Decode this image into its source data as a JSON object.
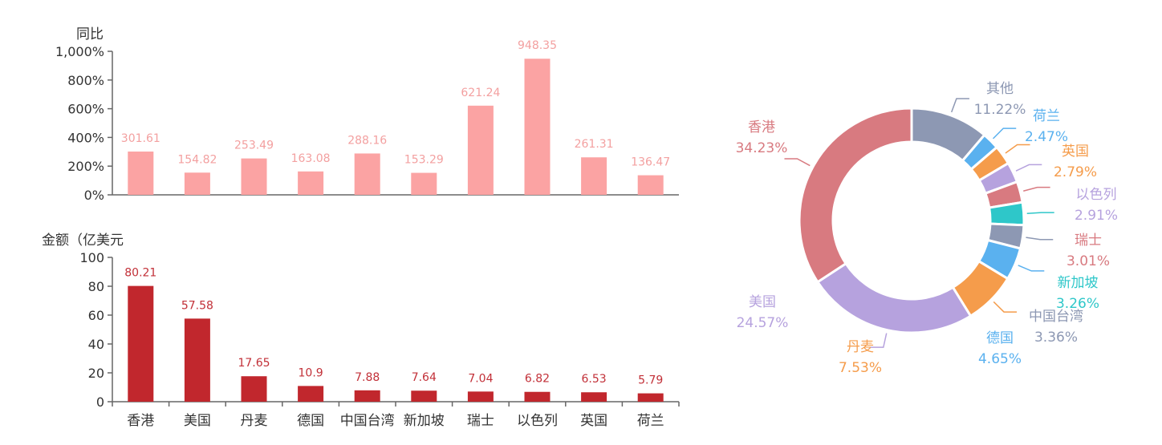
{
  "chart_data": [
    {
      "type": "bar",
      "ylabel": "同比",
      "categories": [
        "香港",
        "美国",
        "丹麦",
        "德国",
        "中国台湾",
        "新加坡",
        "瑞士",
        "以色列",
        "英国",
        "荷兰"
      ],
      "values": [
        301.61,
        154.82,
        253.49,
        163.08,
        288.16,
        153.29,
        621.24,
        948.35,
        261.31,
        136.47
      ],
      "value_labels": [
        "301.61",
        "154.82",
        "253.49",
        "163.08",
        "288.16",
        "153.29",
        "621.24",
        "948.35",
        "261.31",
        "136.47"
      ],
      "ylim": [
        0,
        1000
      ],
      "yticks": [
        "0%",
        "200%",
        "400%",
        "600%",
        "800%",
        "1,000%"
      ],
      "color": "#fba3a3"
    },
    {
      "type": "bar",
      "ylabel": "金额（亿美元",
      "categories": [
        "香港",
        "美国",
        "丹麦",
        "德国",
        "中国台湾",
        "新加坡",
        "瑞士",
        "以色列",
        "英国",
        "荷兰"
      ],
      "values": [
        80.21,
        57.58,
        17.65,
        10.9,
        7.88,
        7.64,
        7.04,
        6.82,
        6.53,
        5.79
      ],
      "value_labels": [
        "80.21",
        "57.58",
        "17.65",
        "10.9",
        "7.88",
        "7.64",
        "7.04",
        "6.82",
        "6.53",
        "5.79"
      ],
      "ylim": [
        0,
        100
      ],
      "yticks": [
        "0",
        "20",
        "40",
        "60",
        "80",
        "100"
      ],
      "color": "#c1272d"
    },
    {
      "type": "pie",
      "donut": true,
      "slices": [
        {
          "name": "其他",
          "label": "11.22%",
          "value": 11.22,
          "color": "#8d98b3"
        },
        {
          "name": "荷兰",
          "label": "2.47%",
          "value": 2.47,
          "color": "#5ab1ef"
        },
        {
          "name": "英国",
          "label": "2.79%",
          "value": 2.79,
          "color": "#f59c4b"
        },
        {
          "name": "以色列",
          "label": "2.91%",
          "value": 2.91,
          "color": "#b6a2de"
        },
        {
          "name": "瑞士",
          "label": "3.01%",
          "value": 3.01,
          "color": "#d87a80"
        },
        {
          "name": "新加坡",
          "label": "3.26%",
          "value": 3.26,
          "color": "#2ec7c9"
        },
        {
          "name": "中国台湾",
          "label": "3.36%",
          "value": 3.36,
          "color": "#8d98b3"
        },
        {
          "name": "德国",
          "label": "4.65%",
          "value": 4.65,
          "color": "#5ab1ef"
        },
        {
          "name": "丹麦",
          "label": "7.53%",
          "value": 7.53,
          "color": "#f59c4b"
        },
        {
          "name": "美国",
          "label": "24.57%",
          "value": 24.57,
          "color": "#b6a2de"
        },
        {
          "name": "香港",
          "label": "34.23%",
          "value": 34.23,
          "color": "#d87a80"
        }
      ]
    }
  ]
}
